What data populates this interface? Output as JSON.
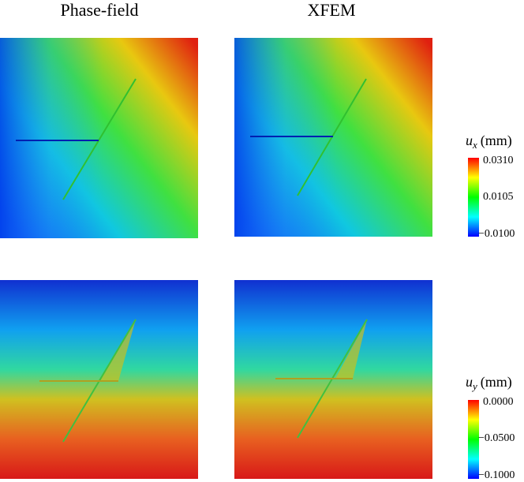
{
  "titles": [
    "Phase-field",
    "XFEM"
  ],
  "colorbars": [
    {
      "symbol": "u",
      "subscript": "x",
      "unit": "(mm)",
      "ticks": [
        "0.0310",
        "0.0105",
        "−0.0100"
      ]
    },
    {
      "symbol": "u",
      "subscript": "y",
      "unit": "(mm)",
      "ticks": [
        "0.0000",
        "−0.0500",
        "−0.1000"
      ]
    }
  ]
}
